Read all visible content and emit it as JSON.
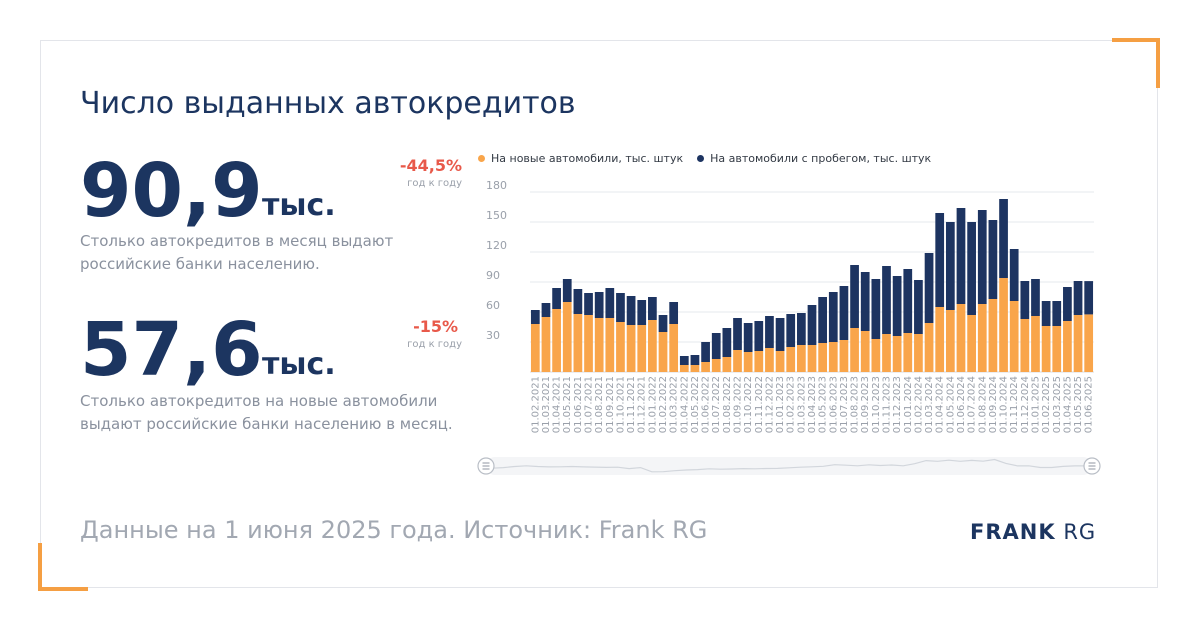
{
  "title": "Число выданных автокредитов",
  "stats": [
    {
      "value": "90,9",
      "unit": "тыс.",
      "description": "Столько автокредитов в месяц выдают российские банки населению.",
      "change": "-44,5%",
      "change_label": "год к году"
    },
    {
      "value": "57,6",
      "unit": "тыс.",
      "description": "Столько автокредитов на новые автомобили выдают российские банки населению в месяц.",
      "change": "-15%",
      "change_label": "год к году"
    }
  ],
  "footer": "Данные на 1 июня 2025 года. Источник: Frank RG",
  "logo": {
    "bold": "FRANK",
    "rest": "RG"
  },
  "colors": {
    "new": "#f9a54a",
    "used": "#1d3461",
    "accent": "#f59f43",
    "negative": "#e8594a"
  },
  "chart_data": {
    "type": "bar",
    "stacked": true,
    "ylim": [
      0,
      180
    ],
    "yticks": [
      30,
      60,
      90,
      120,
      150,
      180
    ],
    "grid": true,
    "legend_position": "top",
    "categories": [
      "01.02.2021",
      "01.03.2021",
      "01.04.2021",
      "01.05.2021",
      "01.06.2021",
      "01.07.2021",
      "01.08.2021",
      "01.09.2021",
      "01.10.2021",
      "01.11.2021",
      "01.12.2021",
      "01.01.2022",
      "01.02.2022",
      "01.03.2022",
      "01.04.2022",
      "01.05.2022",
      "01.06.2022",
      "01.07.2022",
      "01.08.2022",
      "01.09.2022",
      "01.10.2022",
      "01.11.2022",
      "01.12.2022",
      "01.01.2023",
      "01.02.2023",
      "01.03.2023",
      "01.04.2023",
      "01.05.2023",
      "01.06.2023",
      "01.07.2023",
      "01.08.2023",
      "01.09.2023",
      "01.10.2023",
      "01.11.2023",
      "01.12.2023",
      "01.01.2024",
      "01.02.2024",
      "01.03.2024",
      "01.04.2024",
      "01.05.2024",
      "01.06.2024",
      "01.07.2024",
      "01.08.2024",
      "01.09.2024",
      "01.10.2024",
      "01.11.2024",
      "01.12.2024",
      "01.01.2025",
      "01.02.2025",
      "01.03.2025",
      "01.04.2025",
      "01.05.2025",
      "01.06.2025"
    ],
    "series": [
      {
        "name": "На новые автомобили, тыс. штук",
        "values": [
          48,
          55,
          63,
          70,
          58,
          57,
          54,
          54,
          50,
          47,
          47,
          52,
          40,
          48,
          7,
          7,
          10,
          13,
          15,
          22,
          20,
          21,
          24,
          21,
          25,
          27,
          27,
          29,
          30,
          32,
          44,
          41,
          33,
          38,
          36,
          39,
          38,
          49,
          65,
          62,
          68,
          57,
          68,
          73,
          94,
          71,
          53,
          56,
          46,
          46,
          51,
          57,
          57.6
        ]
      },
      {
        "name": "На автомобили с пробегом, тыс. штук",
        "values": [
          14,
          14,
          21,
          23,
          25,
          22,
          26,
          30,
          29,
          29,
          25,
          23,
          17,
          22,
          9,
          10,
          20,
          26,
          29,
          32,
          29,
          30,
          32,
          33,
          33,
          32,
          40,
          46,
          50,
          54,
          63,
          59,
          60,
          68,
          60,
          64,
          54,
          70,
          94,
          88,
          96,
          93,
          94,
          79,
          79,
          52,
          38,
          37,
          25,
          25,
          34,
          34,
          33.3
        ]
      }
    ]
  }
}
